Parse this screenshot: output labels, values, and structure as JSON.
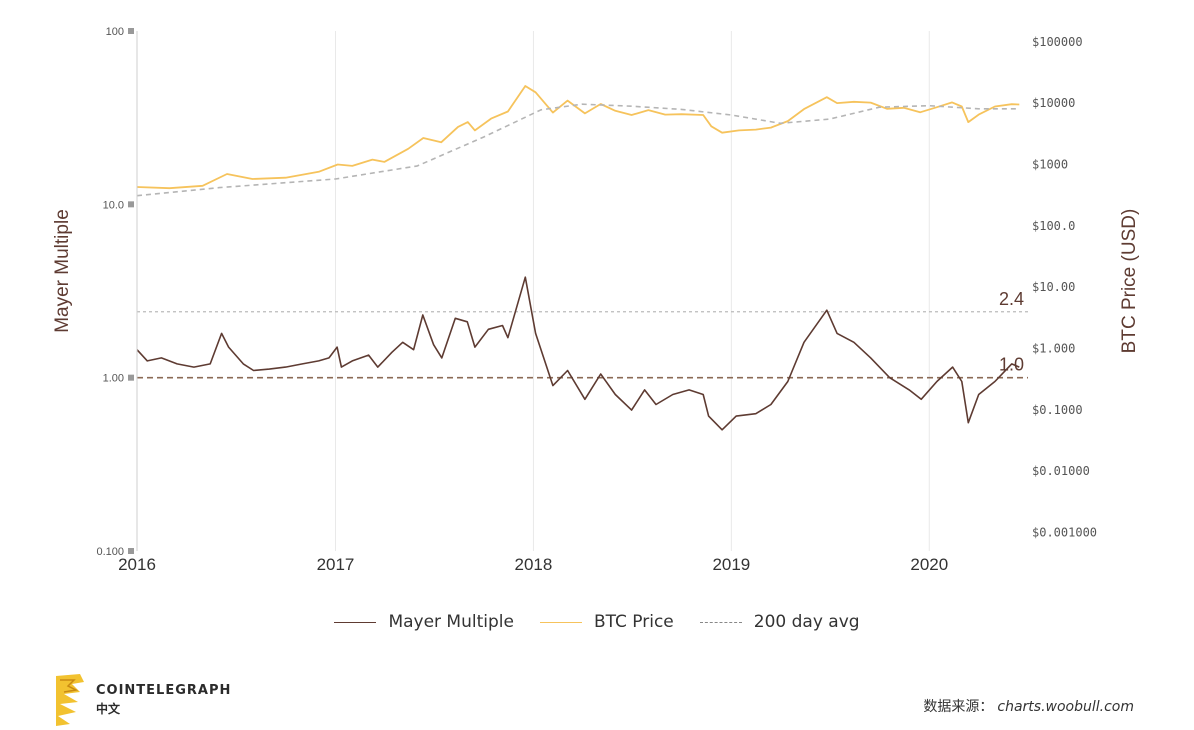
{
  "chart_data": {
    "type": "line",
    "title": "",
    "ylabel_left": "Mayer Multiple",
    "ylabel_right": "BTC Price (USD)",
    "x_tick_labels": [
      "2016",
      "2017",
      "2018",
      "2019",
      "2020"
    ],
    "xlim": [
      "2016-01-01",
      "2020-07-01"
    ],
    "y_left_scale": "log",
    "y_left_ticks": [
      "0.100",
      "1.00",
      "10.0",
      "100"
    ],
    "y_left_lim": [
      0.1,
      100
    ],
    "y_right_scale": "log",
    "y_right_ticks": [
      "$0.001000",
      "$0.01000",
      "$0.1000",
      "$1.000",
      "$10.00",
      "$100.0",
      "$1000",
      "$10000",
      "$100000"
    ],
    "y_right_lim": [
      0.0005,
      150000
    ],
    "grid": "vertical",
    "legend_position": "bottom-center",
    "colors": {
      "mayer": "#5e3b32",
      "price": "#f6c35c",
      "avg": "#b5b5b5",
      "ref_1": "#8a6a55",
      "ref_24": "#bbbbbb"
    },
    "reference_lines": [
      {
        "label": "2.4",
        "value": 2.4,
        "style": "dotted"
      },
      {
        "label": "1.0",
        "value": 1.0,
        "style": "dashed"
      }
    ],
    "series": [
      {
        "name": "BTC Price",
        "axis": "right",
        "x": [
          "2016-01-01",
          "2016-03-01",
          "2016-05-01",
          "2016-06-15",
          "2016-08-01",
          "2016-10-01",
          "2016-12-01",
          "2017-01-05",
          "2017-02-01",
          "2017-03-10",
          "2017-04-01",
          "2017-05-15",
          "2017-06-12",
          "2017-07-15",
          "2017-08-15",
          "2017-09-02",
          "2017-09-15",
          "2017-10-15",
          "2017-11-15",
          "2017-12-17",
          "2018-01-05",
          "2018-02-06",
          "2018-03-05",
          "2018-04-06",
          "2018-05-05",
          "2018-06-01",
          "2018-07-01",
          "2018-08-01",
          "2018-09-01",
          "2018-10-01",
          "2018-11-10",
          "2018-11-25",
          "2018-12-15",
          "2019-01-15",
          "2019-02-15",
          "2019-03-15",
          "2019-04-15",
          "2019-05-15",
          "2019-06-26",
          "2019-07-15",
          "2019-08-15",
          "2019-09-15",
          "2019-10-15",
          "2019-11-15",
          "2019-12-15",
          "2020-01-15",
          "2020-02-12",
          "2020-03-01",
          "2020-03-13",
          "2020-04-01",
          "2020-05-01",
          "2020-06-01",
          "2020-06-15"
        ],
        "values": [
          430,
          410,
          450,
          700,
          580,
          610,
          760,
          1000,
          950,
          1200,
          1100,
          1800,
          2700,
          2300,
          4100,
          4900,
          3600,
          5600,
          7300,
          19000,
          15000,
          7000,
          11000,
          6800,
          9700,
          7500,
          6400,
          7700,
          6500,
          6600,
          6400,
          4200,
          3300,
          3600,
          3700,
          4000,
          5100,
          8000,
          12500,
          10000,
          10500,
          10200,
          8100,
          8400,
          7100,
          8600,
          10300,
          8800,
          4900,
          6500,
          8800,
          9600,
          9500
        ]
      },
      {
        "name": "200 day avg",
        "axis": "right",
        "x": [
          "2016-01-01",
          "2016-06-01",
          "2017-01-01",
          "2017-06-01",
          "2017-10-01",
          "2018-01-15",
          "2018-04-01",
          "2018-07-01",
          "2018-10-01",
          "2019-01-01",
          "2019-04-01",
          "2019-07-01",
          "2019-10-01",
          "2020-01-01",
          "2020-04-01",
          "2020-06-15"
        ],
        "values": [
          310,
          420,
          580,
          950,
          2800,
          7800,
          9600,
          8900,
          7900,
          6400,
          4700,
          5500,
          8600,
          9100,
          8100,
          8100
        ]
      },
      {
        "name": "Mayer Multiple",
        "axis": "left",
        "x": [
          "2016-01-01",
          "2016-01-20",
          "2016-02-15",
          "2016-03-15",
          "2016-04-15",
          "2016-05-15",
          "2016-06-05",
          "2016-06-18",
          "2016-07-15",
          "2016-08-03",
          "2016-09-01",
          "2016-10-01",
          "2016-11-01",
          "2016-12-01",
          "2016-12-20",
          "2017-01-04",
          "2017-01-12",
          "2017-02-01",
          "2017-03-03",
          "2017-03-20",
          "2017-04-15",
          "2017-05-05",
          "2017-05-25",
          "2017-06-11",
          "2017-07-01",
          "2017-07-16",
          "2017-08-10",
          "2017-09-01",
          "2017-09-15",
          "2017-10-10",
          "2017-11-05",
          "2017-11-15",
          "2017-12-17",
          "2018-01-05",
          "2018-02-06",
          "2018-03-05",
          "2018-04-06",
          "2018-05-05",
          "2018-06-01",
          "2018-07-01",
          "2018-07-25",
          "2018-08-15",
          "2018-09-15",
          "2018-10-15",
          "2018-11-10",
          "2018-11-20",
          "2018-12-15",
          "2019-01-10",
          "2019-02-15",
          "2019-03-15",
          "2019-04-15",
          "2019-05-15",
          "2019-06-26",
          "2019-07-15",
          "2019-08-15",
          "2019-09-15",
          "2019-10-20",
          "2019-11-25",
          "2019-12-17",
          "2020-01-15",
          "2020-02-13",
          "2020-03-01",
          "2020-03-13",
          "2020-04-01",
          "2020-05-01",
          "2020-06-01",
          "2020-06-15"
        ],
        "values": [
          1.45,
          1.25,
          1.3,
          1.2,
          1.15,
          1.2,
          1.8,
          1.5,
          1.2,
          1.1,
          1.12,
          1.15,
          1.2,
          1.25,
          1.3,
          1.5,
          1.15,
          1.25,
          1.35,
          1.15,
          1.4,
          1.6,
          1.45,
          2.3,
          1.55,
          1.3,
          2.2,
          2.1,
          1.5,
          1.9,
          2.0,
          1.7,
          3.8,
          1.8,
          0.9,
          1.1,
          0.75,
          1.05,
          0.8,
          0.65,
          0.85,
          0.7,
          0.8,
          0.85,
          0.8,
          0.6,
          0.5,
          0.6,
          0.62,
          0.7,
          0.95,
          1.6,
          2.45,
          1.8,
          1.6,
          1.3,
          1.0,
          0.85,
          0.75,
          0.95,
          1.15,
          0.95,
          0.55,
          0.8,
          0.95,
          1.2,
          1.15
        ]
      }
    ]
  },
  "branding": {
    "name": "COINTELEGRAPH",
    "sub": "中文"
  },
  "source": {
    "label": "数据来源：",
    "url": "charts.woobull.com"
  }
}
